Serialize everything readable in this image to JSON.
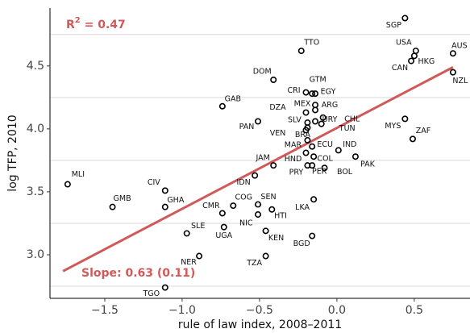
{
  "chart_data": {
    "type": "scatter",
    "xlabel": "rule of law index, 2008–2011",
    "ylabel": "log TFP, 2010",
    "xlim": [
      -1.854,
      0.86
    ],
    "ylim": [
      2.654,
      4.96
    ],
    "xticks": [
      {
        "value": -1.5,
        "label": "−1.5"
      },
      {
        "value": -1.0,
        "label": "−1.0"
      },
      {
        "value": -0.5,
        "label": "−0.5"
      },
      {
        "value": 0.0,
        "label": "0.0"
      },
      {
        "value": 0.5,
        "label": "0.5"
      }
    ],
    "yticks": [
      {
        "value": 3.0,
        "label": "3.0"
      },
      {
        "value": 3.5,
        "label": "3.5"
      },
      {
        "value": 4.0,
        "label": "4.0"
      },
      {
        "value": 4.5,
        "label": "4.5"
      }
    ],
    "ygrid": [
      2.75,
      3.25,
      3.75,
      4.25,
      4.75
    ],
    "point_color": "#000000",
    "fit_color": "#d05a5a",
    "fit": {
      "x": [
        -1.77,
        0.75
      ],
      "y": [
        2.87,
        4.49
      ]
    },
    "r2": {
      "base": "R",
      "sup": "2",
      "text": " = 0.47"
    },
    "slope_text": "Slope: 0.63 (0.11)",
    "points": [
      {
        "label": "SGP",
        "x": 0.44,
        "y": 4.88
      },
      {
        "label": "USA",
        "x": 0.51,
        "y": 4.62
      },
      {
        "label": "HKG",
        "x": 0.5,
        "y": 4.58
      },
      {
        "label": "CAN",
        "x": 0.48,
        "y": 4.54
      },
      {
        "label": "AUS",
        "x": 0.75,
        "y": 4.6
      },
      {
        "label": "NZL",
        "x": 0.75,
        "y": 4.45
      },
      {
        "label": "TTO",
        "x": -0.23,
        "y": 4.62
      },
      {
        "label": "DOM",
        "x": -0.41,
        "y": 4.39
      },
      {
        "label": "GTM",
        "x": -0.16,
        "y": 4.28
      },
      {
        "label": "CRI",
        "x": -0.2,
        "y": 4.29
      },
      {
        "label": "EGY",
        "x": -0.14,
        "y": 4.28
      },
      {
        "label": "GAB",
        "x": -0.74,
        "y": 4.18
      },
      {
        "label": "MEX",
        "x": -0.14,
        "y": 4.19
      },
      {
        "label": "ARG",
        "x": -0.14,
        "y": 4.15
      },
      {
        "label": "DZA",
        "x": -0.2,
        "y": 4.13
      },
      {
        "label": "PAN",
        "x": -0.51,
        "y": 4.06
      },
      {
        "label": "SLV",
        "x": -0.19,
        "y": 4.05
      },
      {
        "label": "URY",
        "x": -0.14,
        "y": 4.06
      },
      {
        "label": "CHL",
        "x": -0.09,
        "y": 4.09
      },
      {
        "label": "VEN",
        "x": -0.2,
        "y": 3.99
      },
      {
        "label": "BRA",
        "x": -0.19,
        "y": 4.01
      },
      {
        "label": "TUN",
        "x": -0.1,
        "y": 4.04
      },
      {
        "label": "MYS",
        "x": 0.44,
        "y": 4.08
      },
      {
        "label": "ZAF",
        "x": 0.49,
        "y": 3.92
      },
      {
        "label": "MAR",
        "x": -0.19,
        "y": 3.91
      },
      {
        "label": "ECU",
        "x": -0.16,
        "y": 3.86
      },
      {
        "label": "IND",
        "x": 0.01,
        "y": 3.83
      },
      {
        "label": "JAM",
        "x": -0.41,
        "y": 3.71
      },
      {
        "label": "HND",
        "x": -0.2,
        "y": 3.81
      },
      {
        "label": "COL",
        "x": -0.15,
        "y": 3.78
      },
      {
        "label": "PAK",
        "x": 0.12,
        "y": 3.78
      },
      {
        "label": "PRY",
        "x": -0.19,
        "y": 3.71
      },
      {
        "label": "PER",
        "x": -0.16,
        "y": 3.71
      },
      {
        "label": "BOL",
        "x": -0.08,
        "y": 3.69
      },
      {
        "label": "IDN",
        "x": -0.53,
        "y": 3.63
      },
      {
        "label": "MLI",
        "x": -1.74,
        "y": 3.56
      },
      {
        "label": "CIV",
        "x": -1.11,
        "y": 3.51
      },
      {
        "label": "GMB",
        "x": -1.45,
        "y": 3.38
      },
      {
        "label": "GHA",
        "x": -1.11,
        "y": 3.38
      },
      {
        "label": "COG",
        "x": -0.67,
        "y": 3.39
      },
      {
        "label": "SEN",
        "x": -0.51,
        "y": 3.4
      },
      {
        "label": "CMR",
        "x": -0.74,
        "y": 3.33
      },
      {
        "label": "LKA",
        "x": -0.15,
        "y": 3.44
      },
      {
        "label": "HTI",
        "x": -0.51,
        "y": 3.32
      },
      {
        "label": "SLE",
        "x": -0.97,
        "y": 3.17
      },
      {
        "label": "UGA",
        "x": -0.73,
        "y": 3.22
      },
      {
        "label": "NIC",
        "x": -0.42,
        "y": 3.36
      },
      {
        "label": "KEN",
        "x": -0.46,
        "y": 3.19
      },
      {
        "label": "BGD",
        "x": -0.16,
        "y": 3.15
      },
      {
        "label": "NER",
        "x": -0.89,
        "y": 2.99
      },
      {
        "label": "TZA",
        "x": -0.46,
        "y": 2.99
      },
      {
        "label": "TGO",
        "x": -1.11,
        "y": 2.74
      }
    ]
  }
}
